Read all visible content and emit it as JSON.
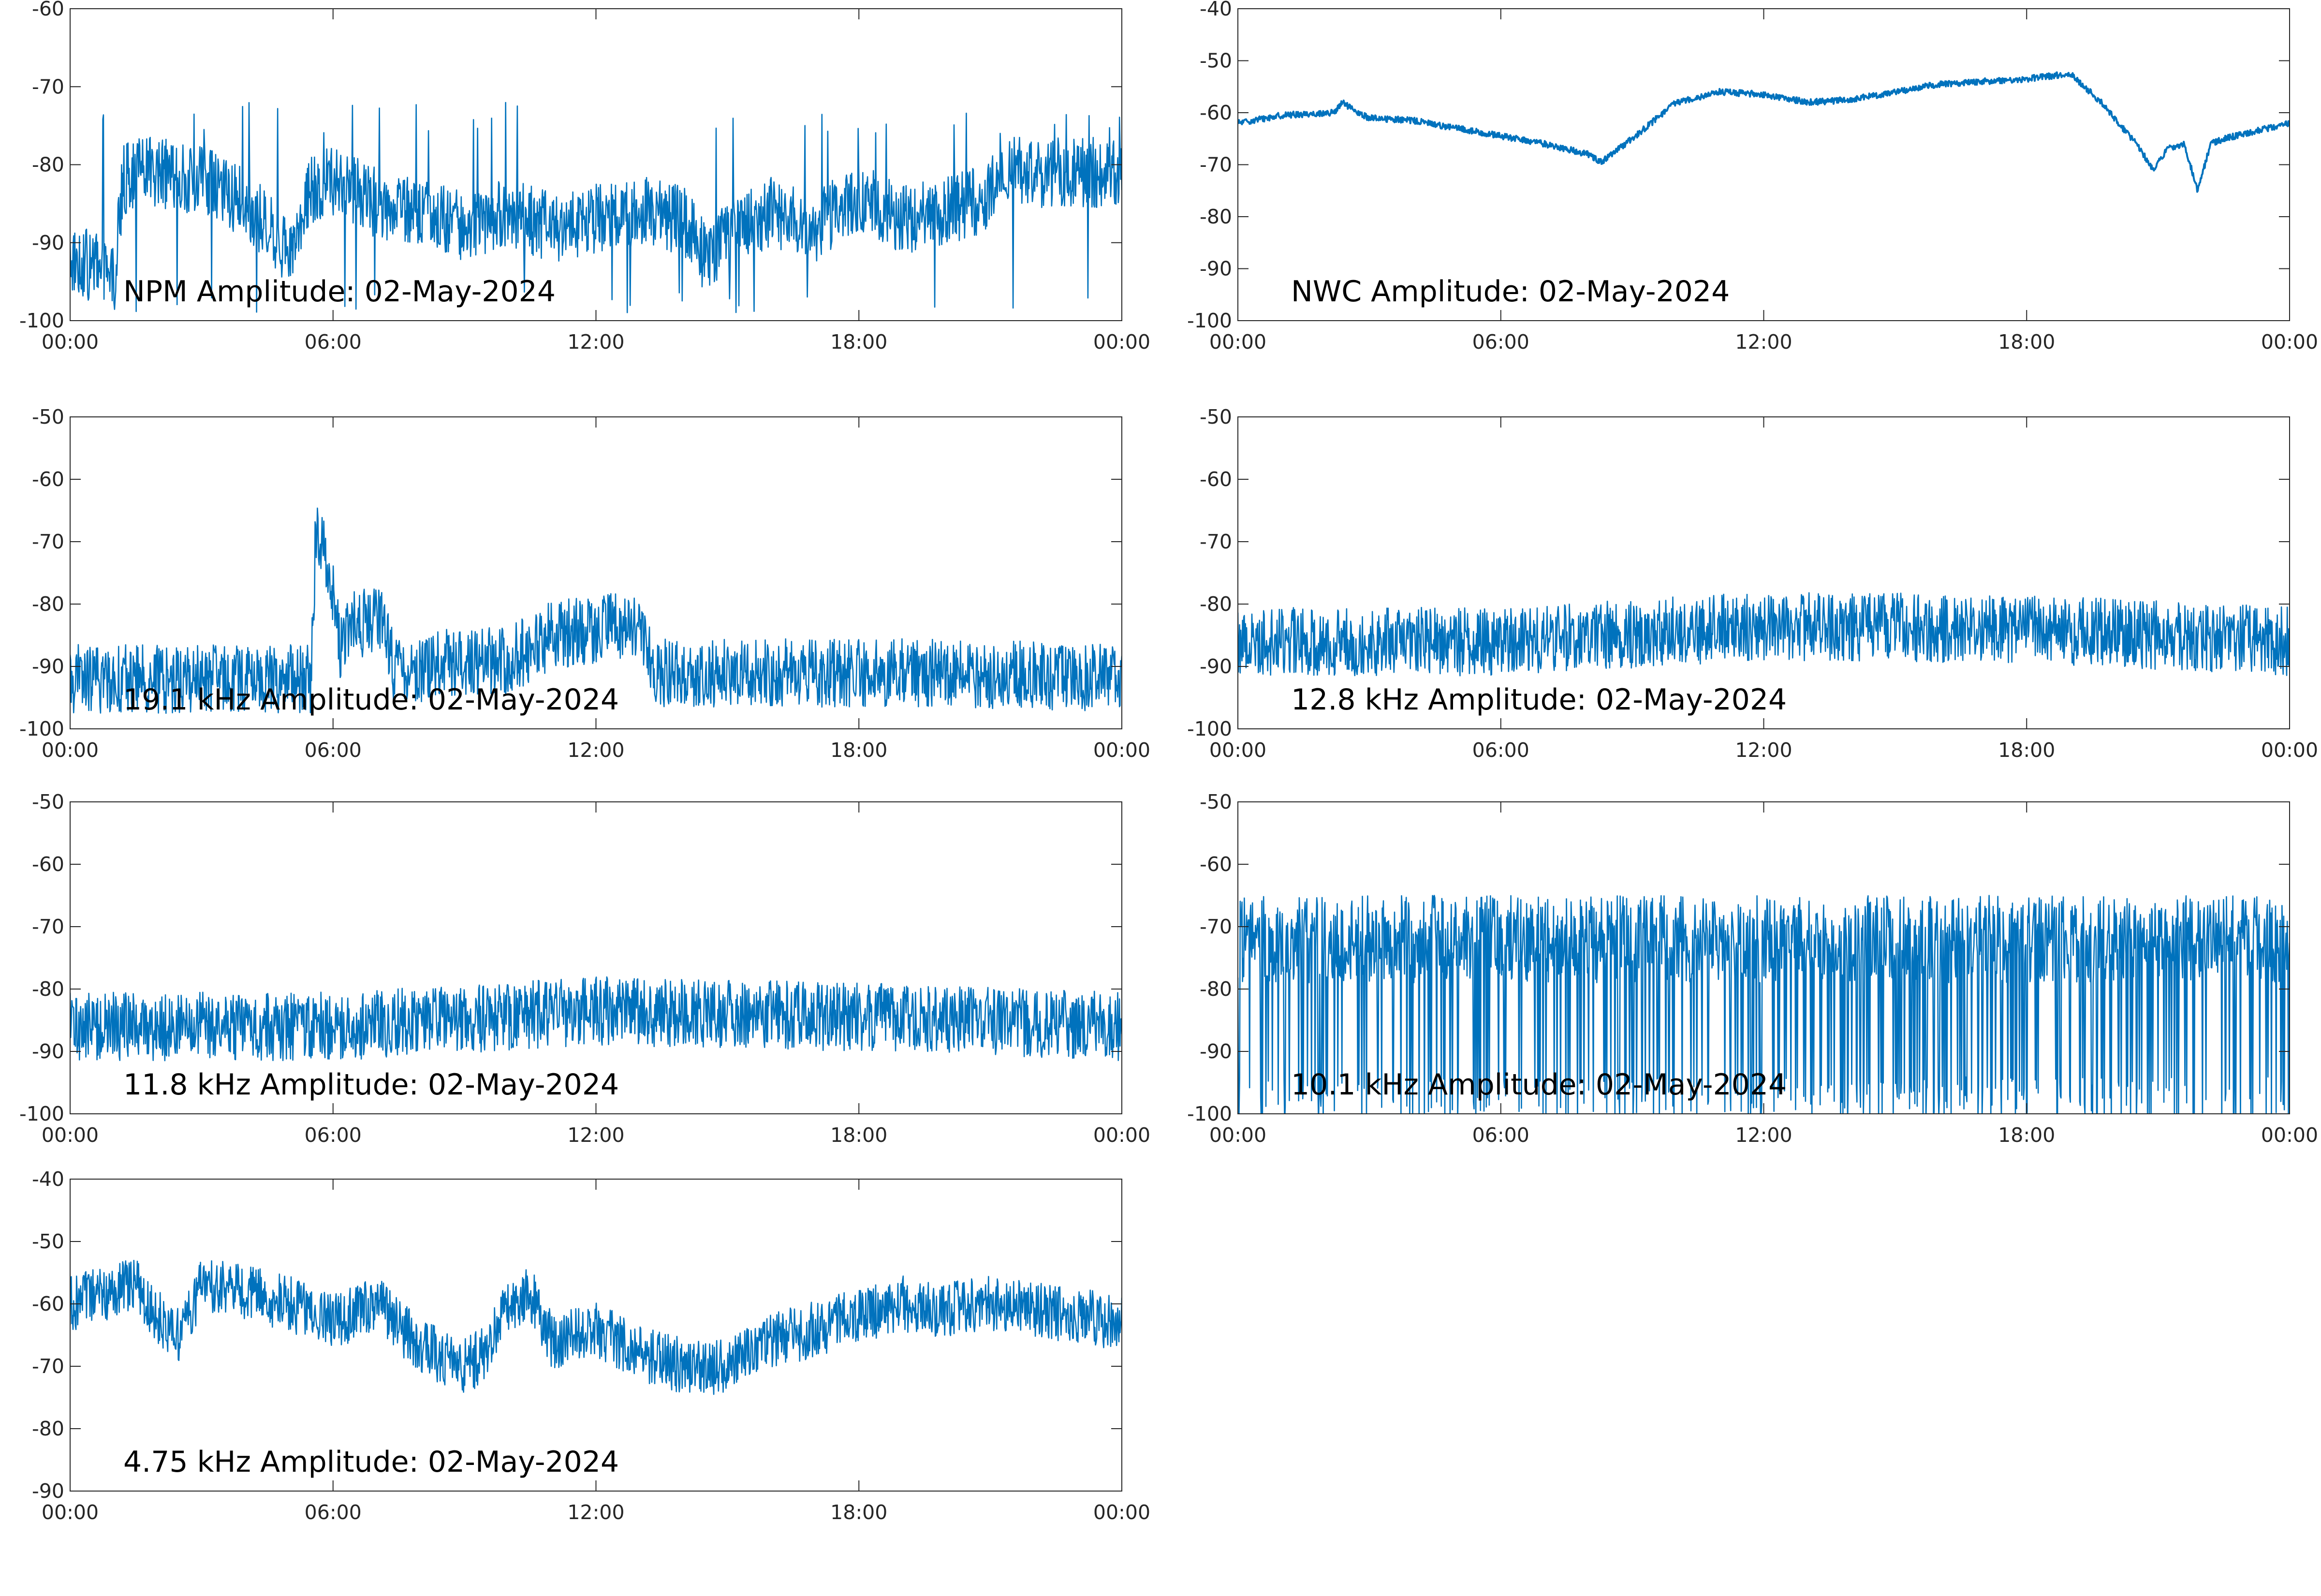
{
  "figure": {
    "line_color": "#0072BD",
    "axes_color": "#262626",
    "background": "#ffffff"
  },
  "chart_data": [
    {
      "type": "line",
      "title": "NPM Amplitude: 02-May-2024",
      "xticks": [
        "00:00",
        "06:00",
        "12:00",
        "18:00",
        "00:00"
      ],
      "xlim": [
        0,
        24
      ],
      "ylim": [
        -100,
        -60
      ],
      "yticks": [
        "-100",
        "-90",
        "-80",
        "-70",
        "-60"
      ],
      "x": [
        0,
        0.5,
        1,
        1.2,
        1.5,
        2,
        3,
        4,
        4.5,
        5,
        5.5,
        6,
        7,
        8,
        9,
        10,
        11,
        12,
        13,
        14,
        14.5,
        15,
        16,
        17,
        18,
        19,
        20,
        21,
        21.2,
        22,
        23,
        24
      ],
      "y": [
        -92,
        -93,
        -95,
        -82,
        -81,
        -81,
        -82,
        -85,
        -88,
        -91,
        -83,
        -82,
        -85,
        -86,
        -88,
        -86,
        -88,
        -87,
        -86,
        -87,
        -92,
        -89,
        -86,
        -88,
        -84,
        -87,
        -86,
        -84,
        -80,
        -81,
        -81,
        -81
      ],
      "noise": 4.5
    },
    {
      "type": "line",
      "title": "NWC Amplitude: 02-May-2024",
      "xticks": [
        "00:00",
        "06:00",
        "12:00",
        "18:00",
        "00:00"
      ],
      "xlim": [
        0,
        24
      ],
      "ylim": [
        -100,
        -40
      ],
      "yticks": [
        "-100",
        "-90",
        "-80",
        "-70",
        "-60",
        "-50",
        "-40"
      ],
      "x": [
        0,
        1,
        2.2,
        2.4,
        2.7,
        3,
        4,
        5,
        6,
        7,
        8,
        8.3,
        9,
        10,
        11,
        12,
        13,
        14,
        15,
        16,
        17,
        18,
        18.5,
        19,
        19.7,
        20.5,
        20.9,
        21.2,
        21.6,
        21.9,
        22.2,
        22.5,
        23,
        24
      ],
      "y": [
        -62,
        -60.5,
        -60,
        -58,
        -60,
        -61,
        -61.5,
        -63,
        -64.5,
        -66,
        -68,
        -69.5,
        -65,
        -58,
        -56,
        -56.5,
        -58,
        -57.5,
        -56,
        -54.5,
        -54,
        -53.5,
        -53,
        -52.5,
        -58,
        -66,
        -71,
        -67,
        -66,
        -75,
        -66,
        -65,
        -64,
        -62
      ],
      "noise": 0.6
    },
    {
      "type": "line",
      "title": "19.1 kHz Amplitude: 02-May-2024",
      "xticks": [
        "00:00",
        "06:00",
        "12:00",
        "18:00",
        "00:00"
      ],
      "xlim": [
        0,
        24
      ],
      "ylim": [
        -100,
        -50
      ],
      "yticks": [
        "-100",
        "-90",
        "-80",
        "-70",
        "-60",
        "-50"
      ],
      "x": [
        0,
        5.5,
        5.6,
        5.8,
        6.2,
        6.4,
        7.2,
        7.4,
        9,
        10,
        11,
        12,
        13,
        13.3,
        20,
        24
      ],
      "y": [
        -92,
        -92,
        -70,
        -70,
        -88,
        -83,
        -83,
        -91,
        -89,
        -89,
        -85,
        -84,
        -83,
        -91,
        -91,
        -92
      ],
      "noise": 5.5
    },
    {
      "type": "line",
      "title": "12.8 kHz Amplitude: 02-May-2024",
      "xticks": [
        "00:00",
        "06:00",
        "12:00",
        "18:00",
        "00:00"
      ],
      "xlim": [
        0,
        24
      ],
      "ylim": [
        -100,
        -50
      ],
      "yticks": [
        "-100",
        "-90",
        "-80",
        "-70",
        "-60",
        "-50"
      ],
      "x": [
        0,
        6,
        12,
        18,
        24
      ],
      "y": [
        -86,
        -86,
        -83.5,
        -84,
        -86
      ],
      "noise": 5.5
    },
    {
      "type": "line",
      "title": "11.8 kHz Amplitude: 02-May-2024",
      "xticks": [
        "00:00",
        "06:00",
        "12:00",
        "18:00",
        "00:00"
      ],
      "xlim": [
        0,
        24
      ],
      "ylim": [
        -100,
        -50
      ],
      "yticks": [
        "-100",
        "-90",
        "-80",
        "-70",
        "-60",
        "-50"
      ],
      "x": [
        0,
        6,
        12,
        18,
        24
      ],
      "y": [
        -86,
        -86,
        -83.5,
        -84.5,
        -86
      ],
      "noise": 5.5
    },
    {
      "type": "line",
      "title": "10.1 kHz Amplitude: 02-May-2024",
      "xticks": [
        "00:00",
        "06:00",
        "12:00",
        "18:00",
        "00:00"
      ],
      "xlim": [
        0,
        24
      ],
      "ylim": [
        -100,
        -50
      ],
      "yticks": [
        "-100",
        "-90",
        "-80",
        "-70",
        "-60",
        "-50"
      ],
      "x": [
        0,
        6,
        12,
        18,
        24
      ],
      "y": [
        -72,
        -72,
        -72,
        -72,
        -72
      ],
      "noise": 7
    },
    {
      "type": "line",
      "title": "4.75 kHz Amplitude: 02-May-2024",
      "xticks": [
        "00:00",
        "06:00",
        "12:00",
        "18:00",
        "00:00"
      ],
      "xlim": [
        0,
        24
      ],
      "ylim": [
        -90,
        -40
      ],
      "yticks": [
        "-90",
        "-80",
        "-70",
        "-60",
        "-50",
        "-40"
      ],
      "x": [
        0,
        1,
        1.5,
        2,
        2.5,
        3,
        4,
        5,
        6,
        7,
        8,
        9,
        9.5,
        10,
        10.5,
        11,
        12,
        13,
        14,
        15,
        16,
        17,
        18,
        19,
        20,
        21,
        22,
        23,
        24
      ],
      "y": [
        -60,
        -58,
        -57,
        -62,
        -65,
        -57,
        -58,
        -60,
        -63,
        -60,
        -67,
        -70,
        -68,
        -60,
        -58,
        -66,
        -64,
        -68,
        -70,
        -70,
        -66,
        -64,
        -62,
        -60,
        -61,
        -60,
        -61,
        -62,
        -63
      ],
      "noise": 4.5
    }
  ]
}
